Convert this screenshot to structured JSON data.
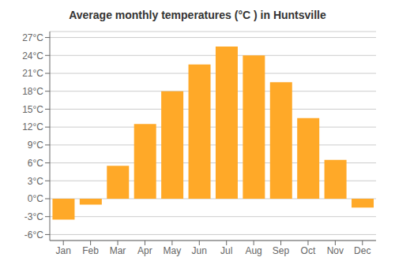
{
  "chart_data": {
    "type": "bar",
    "title": "Average monthly temperatures (°C ) in Huntsville",
    "categories": [
      "Jan",
      "Feb",
      "Mar",
      "Apr",
      "May",
      "Jun",
      "Jul",
      "Aug",
      "Sep",
      "Oct",
      "Nov",
      "Dec"
    ],
    "values": [
      -3.5,
      -1.0,
      5.5,
      12.5,
      18.0,
      22.5,
      25.5,
      24.0,
      19.5,
      13.5,
      6.5,
      -1.5
    ],
    "color": "#FFA928",
    "ylim": [
      -7,
      28
    ],
    "yticks": [
      {
        "value": -6,
        "label": "-6°C"
      },
      {
        "value": -3,
        "label": "-3°C"
      },
      {
        "value": 0,
        "label": "0°C"
      },
      {
        "value": 3,
        "label": "3°C"
      },
      {
        "value": 6,
        "label": "6°C"
      },
      {
        "value": 9,
        "label": "9°C"
      },
      {
        "value": 12,
        "label": "12°C"
      },
      {
        "value": 15,
        "label": "15°C"
      },
      {
        "value": 18,
        "label": "18°C"
      },
      {
        "value": 21,
        "label": "21°C"
      },
      {
        "value": 24,
        "label": "24°C"
      },
      {
        "value": 27,
        "label": "27°C"
      }
    ],
    "grid": true
  }
}
